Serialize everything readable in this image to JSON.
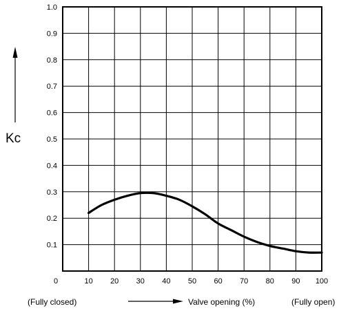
{
  "chart_data": {
    "type": "line",
    "title": "",
    "ylabel": "Kc",
    "xlabel": "Valve opening (%)",
    "x_left_note": "(Fully closed)",
    "x_right_note": "(Fully open)",
    "xlim": [
      0,
      100
    ],
    "ylim": [
      0,
      1.0
    ],
    "grid": true,
    "x_ticks": [
      "0",
      "10",
      "20",
      "30",
      "40",
      "50",
      "60",
      "70",
      "80",
      "90",
      "100"
    ],
    "y_ticks": [
      "0.1",
      "0.2",
      "0.3",
      "0.4",
      "0.5",
      "0.6",
      "0.7",
      "0.8",
      "0.9",
      "1.0"
    ],
    "series": [
      {
        "x": [
          10,
          15,
          20,
          25,
          30,
          35,
          40,
          45,
          50,
          55,
          60,
          65,
          70,
          75,
          80,
          85,
          90,
          95,
          100
        ],
        "y": [
          0.22,
          0.25,
          0.27,
          0.285,
          0.295,
          0.295,
          0.285,
          0.27,
          0.245,
          0.215,
          0.18,
          0.155,
          0.13,
          0.11,
          0.095,
          0.085,
          0.075,
          0.07,
          0.07
        ]
      }
    ]
  }
}
